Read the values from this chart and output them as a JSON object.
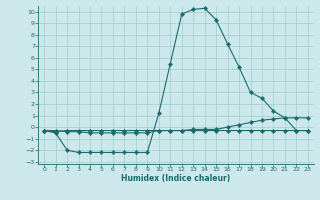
{
  "xlabel": "Humidex (Indice chaleur)",
  "xlim": [
    -0.5,
    23.5
  ],
  "ylim": [
    -3.2,
    10.5
  ],
  "xticks": [
    0,
    1,
    2,
    3,
    4,
    5,
    6,
    7,
    8,
    9,
    10,
    11,
    12,
    13,
    14,
    15,
    16,
    17,
    18,
    19,
    20,
    21,
    22,
    23
  ],
  "yticks": [
    -3,
    -2,
    -1,
    0,
    1,
    2,
    3,
    4,
    5,
    6,
    7,
    8,
    9,
    10
  ],
  "bg_color": "#cce8ea",
  "grid_color": "#9ecece",
  "line_color": "#1a6b6b",
  "line1_x": [
    0,
    1,
    2,
    3,
    4,
    5,
    6,
    7,
    8,
    9,
    10,
    11,
    12,
    13,
    14,
    15,
    16,
    17,
    18,
    19,
    20,
    21,
    22,
    23
  ],
  "line1_y": [
    -0.3,
    -0.4,
    -0.3,
    -0.3,
    -0.3,
    -0.3,
    -0.3,
    -0.3,
    -0.3,
    -0.3,
    -0.3,
    -0.3,
    -0.3,
    -0.3,
    -0.3,
    -0.3,
    -0.3,
    -0.3,
    -0.3,
    -0.3,
    -0.3,
    -0.3,
    -0.3,
    -0.3
  ],
  "line2_x": [
    0,
    1,
    2,
    3,
    4,
    5,
    6,
    7,
    8,
    9,
    10,
    11,
    12,
    13,
    14,
    15,
    16,
    17,
    18,
    19,
    20,
    21,
    22,
    23
  ],
  "line2_y": [
    -0.3,
    -0.3,
    -0.4,
    -0.4,
    -0.5,
    -0.5,
    -0.5,
    -0.5,
    -0.5,
    -0.5,
    -0.3,
    -0.3,
    -0.3,
    -0.2,
    -0.2,
    -0.2,
    0.0,
    0.2,
    0.4,
    0.6,
    0.7,
    0.8,
    0.8,
    0.8
  ],
  "line3_x": [
    0,
    1,
    2,
    3,
    4,
    5,
    6,
    7,
    8,
    9,
    10,
    11,
    12,
    13,
    14,
    15,
    16,
    17,
    18,
    19,
    20,
    21,
    22,
    23
  ],
  "line3_y": [
    -0.3,
    -0.5,
    -2.0,
    -2.2,
    -2.2,
    -2.2,
    -2.2,
    -2.2,
    -2.2,
    -2.2,
    1.2,
    5.5,
    9.8,
    10.2,
    10.3,
    9.3,
    7.2,
    5.2,
    3.0,
    2.5,
    1.4,
    0.8,
    -0.3,
    -0.3
  ]
}
